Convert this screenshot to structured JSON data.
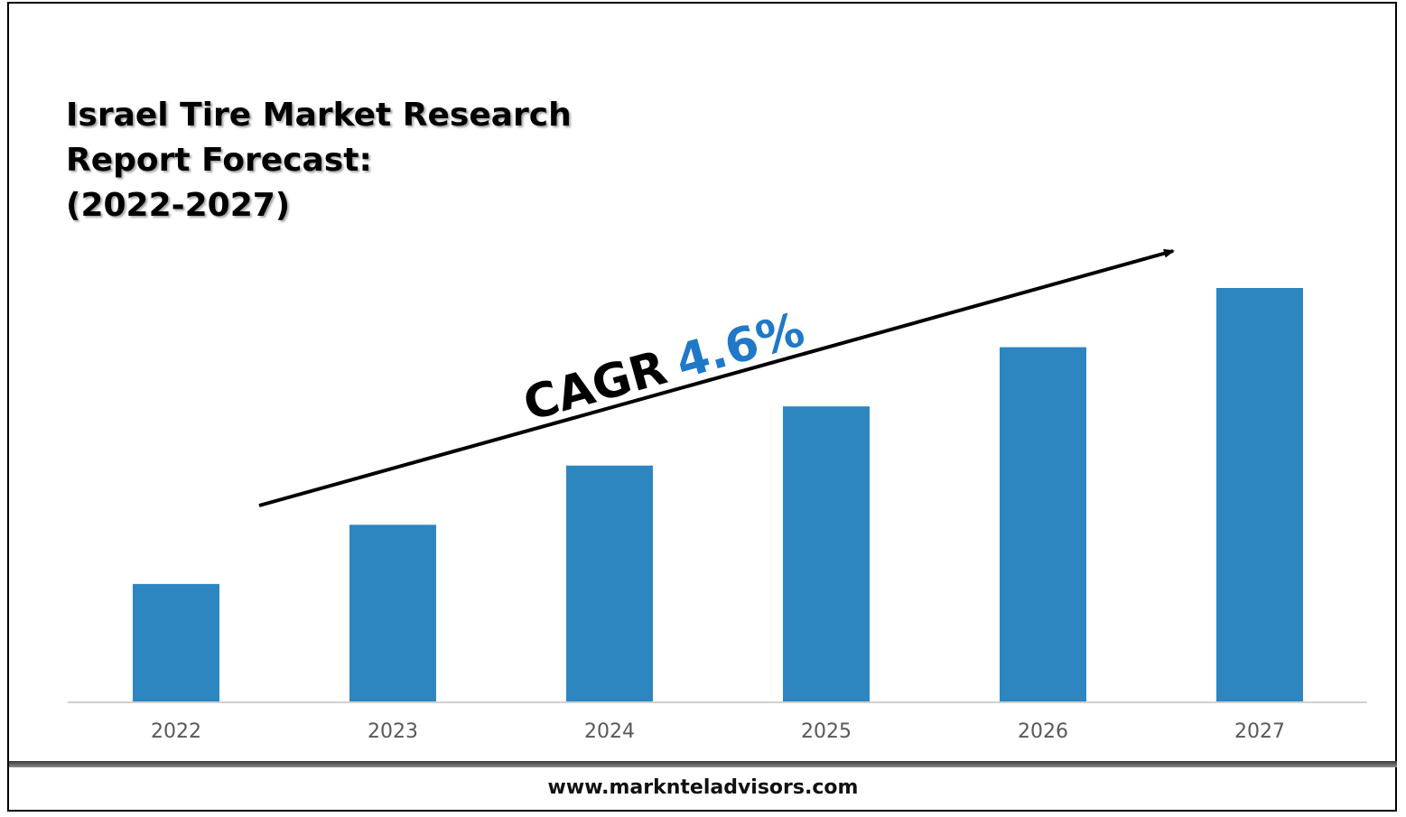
{
  "chart_data": {
    "type": "bar",
    "title_lines": [
      "Israel Tire Market Research",
      "Report Forecast:",
      "(2022-2027)"
    ],
    "categories": [
      "2022",
      "2023",
      "2024",
      "2025",
      "2026",
      "2027"
    ],
    "values": [
      1.0,
      1.5,
      2.0,
      2.5,
      3.0,
      3.5
    ],
    "ylim": [
      0,
      3.5
    ],
    "xlabel": "",
    "ylabel": "",
    "grid": false,
    "bar_color": "#2E86C1",
    "annotation": {
      "prefix": "CAGR",
      "value": "4.6%",
      "prefix_color": "#000000",
      "value_color": "#1F78C8"
    }
  },
  "footer": {
    "url": "www.marknteladvisors.com"
  }
}
